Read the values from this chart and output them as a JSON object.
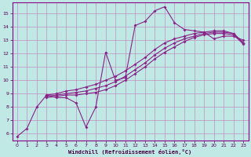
{
  "bg_color": "#c0e8e4",
  "grid_color": "#c090c0",
  "line_color": "#882288",
  "xlabel": "Windchill (Refroidissement éolien,°C)",
  "xlim": [
    -0.5,
    23.5
  ],
  "ylim": [
    5.5,
    15.8
  ],
  "yticks": [
    6,
    7,
    8,
    9,
    10,
    11,
    12,
    13,
    14,
    15
  ],
  "xticks": [
    0,
    1,
    2,
    3,
    4,
    5,
    6,
    7,
    8,
    9,
    10,
    11,
    12,
    13,
    14,
    15,
    16,
    17,
    18,
    19,
    20,
    21,
    22,
    23
  ],
  "lines": [
    {
      "x": [
        0,
        1,
        2,
        3,
        4,
        5,
        6,
        7,
        8,
        9,
        10,
        11,
        12,
        13,
        14,
        15,
        16,
        17,
        18,
        19,
        20,
        21,
        22,
        23
      ],
      "y": [
        5.8,
        6.4,
        8.0,
        8.9,
        8.7,
        8.7,
        8.3,
        6.5,
        8.0,
        12.1,
        10.0,
        10.2,
        14.1,
        14.4,
        15.2,
        15.5,
        14.3,
        13.8,
        13.7,
        13.6,
        13.1,
        13.3,
        13.3,
        13.0
      ]
    },
    {
      "x": [
        3,
        4,
        5,
        6,
        7,
        8,
        9,
        10,
        11,
        12,
        13,
        14,
        15,
        16,
        17,
        18,
        19,
        20,
        21,
        22,
        23
      ],
      "y": [
        8.7,
        8.8,
        8.9,
        8.9,
        9.0,
        9.1,
        9.3,
        9.6,
        10.0,
        10.5,
        11.0,
        11.6,
        12.1,
        12.5,
        12.9,
        13.2,
        13.4,
        13.5,
        13.5,
        13.4,
        12.7
      ]
    },
    {
      "x": [
        3,
        4,
        5,
        6,
        7,
        8,
        9,
        10,
        11,
        12,
        13,
        14,
        15,
        16,
        17,
        18,
        19,
        20,
        21,
        22,
        23
      ],
      "y": [
        8.8,
        8.9,
        9.0,
        9.1,
        9.2,
        9.4,
        9.6,
        9.9,
        10.3,
        10.8,
        11.3,
        11.9,
        12.4,
        12.8,
        13.1,
        13.3,
        13.5,
        13.6,
        13.6,
        13.5,
        12.8
      ]
    },
    {
      "x": [
        3,
        4,
        5,
        6,
        7,
        8,
        9,
        10,
        11,
        12,
        13,
        14,
        15,
        16,
        17,
        18,
        19,
        20,
        21,
        22,
        23
      ],
      "y": [
        8.9,
        9.0,
        9.2,
        9.3,
        9.5,
        9.7,
        10.0,
        10.3,
        10.7,
        11.2,
        11.7,
        12.3,
        12.8,
        13.1,
        13.3,
        13.5,
        13.6,
        13.7,
        13.7,
        13.5,
        12.8
      ]
    }
  ]
}
